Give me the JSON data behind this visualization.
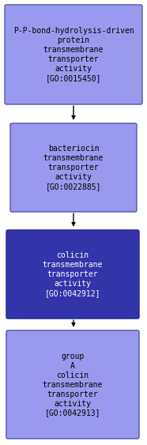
{
  "nodes": [
    {
      "label": "P-P-bond-hydrolysis-driven\nprotein\ntransmembrane\ntransporter\nactivity\n[GO:0015450]",
      "bg_color": "#9999ee",
      "text_color": "#000000",
      "border_color": "#5555aa"
    },
    {
      "label": "bacteriocin\ntransmembrane\ntransporter\nactivity\n[GO:0022885]",
      "bg_color": "#9999ee",
      "text_color": "#000000",
      "border_color": "#5555aa"
    },
    {
      "label": "colicin\ntransmembrane\ntransporter\nactivity\n[GO:0042912]",
      "bg_color": "#3333aa",
      "text_color": "#ffffff",
      "border_color": "#222288"
    },
    {
      "label": "group\nA\ncolicin\ntransmembrane\ntransporter\nactivity\n[GO:0042913]",
      "bg_color": "#9999ee",
      "text_color": "#000000",
      "border_color": "#5555aa"
    }
  ],
  "background_color": "#ffffff",
  "font_size": 7.0,
  "arrow_color": "#000000",
  "fig_width": 1.86,
  "fig_height": 5.63,
  "dpi": 100
}
